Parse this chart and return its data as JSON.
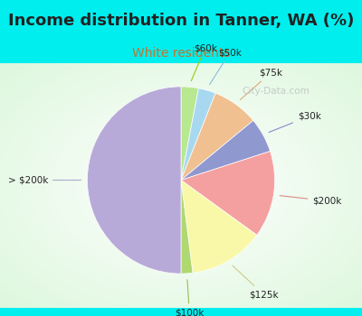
{
  "title": "Income distribution in Tanner, WA (%)",
  "subtitle": "White residents",
  "title_fontsize": 13,
  "subtitle_fontsize": 10,
  "title_color": "#222222",
  "subtitle_color": "#bb7733",
  "top_bg": "#00eeee",
  "chart_bg_top": "#e8f8f0",
  "chart_bg_bottom": "#c8edd8",
  "border_color": "#00eeee",
  "slices": [
    {
      "label": "$60k",
      "value": 3,
      "color": "#b8e890"
    },
    {
      "label": "$50k",
      "value": 3,
      "color": "#a8d8f0"
    },
    {
      "label": "$75k",
      "value": 8,
      "color": "#f0c090"
    },
    {
      "label": "$30k",
      "value": 6,
      "color": "#9098d0"
    },
    {
      "label": "$200k",
      "value": 15,
      "color": "#f5a0a0"
    },
    {
      "label": "$125k",
      "value": 13,
      "color": "#f8f8a8"
    },
    {
      "label": "$100k",
      "value": 2,
      "color": "#b0d870"
    },
    {
      "label": "> $200k",
      "value": 50,
      "color": "#b8aad8"
    }
  ],
  "startangle": 90,
  "label_colors": {
    "$60k": "#99cc00",
    "$50k": "#88bbdd",
    "$75k": "#ddaa77",
    "$30k": "#8888cc",
    "$200k": "#dd8888",
    "$125k": "#cccc88",
    "$100k": "#99bb55",
    "> $200k": "#aaaacc"
  },
  "watermark": "City-Data.com",
  "watermark_color": "#bbbbbb"
}
